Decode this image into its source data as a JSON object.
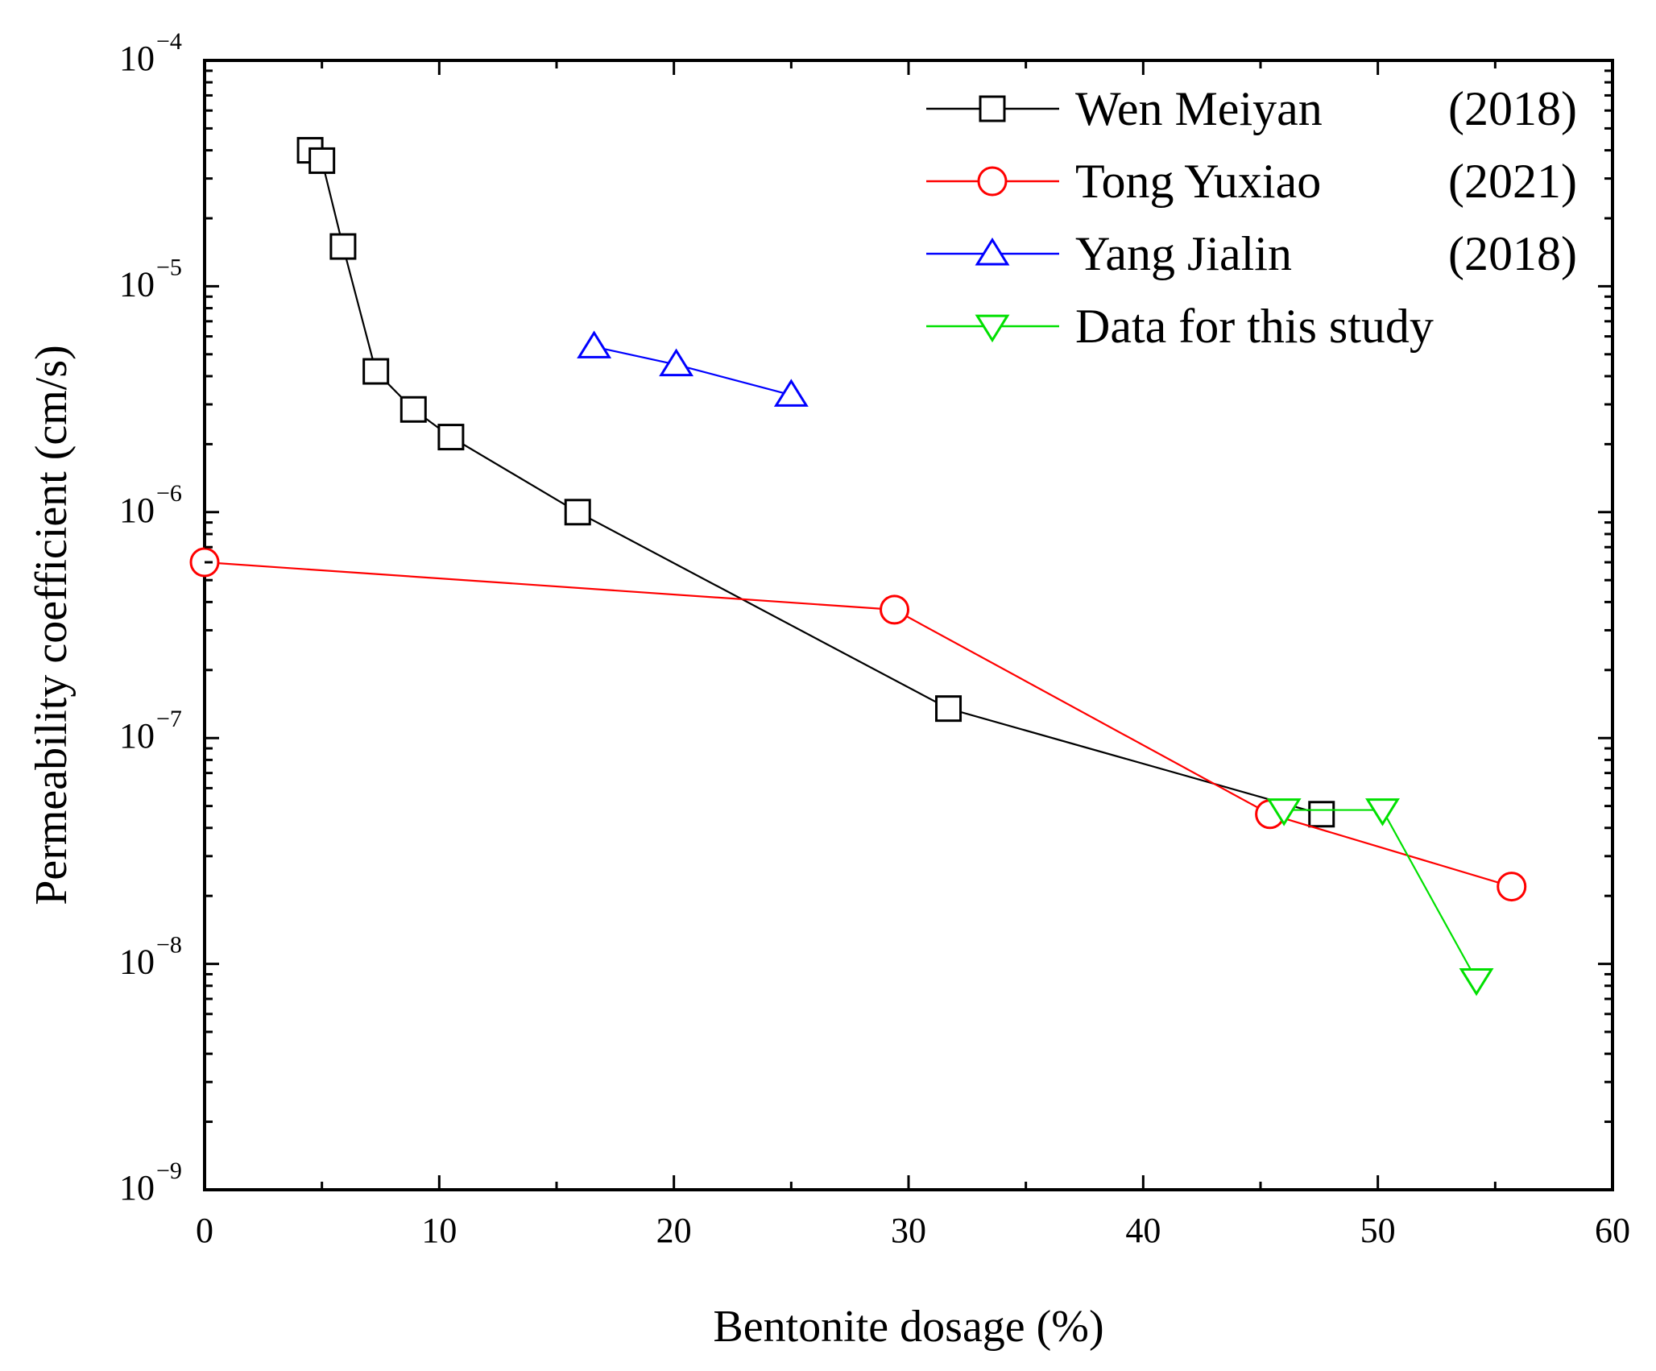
{
  "chart_data": {
    "type": "line",
    "xlabel": "Bentonite dosage (%)",
    "ylabel": "Permeability coefficient  (cm/s)",
    "xlim": [
      0,
      60
    ],
    "ylim_exponents": [
      -9,
      -4
    ],
    "yscale": "log",
    "x_ticks": [
      "0",
      "10",
      "20",
      "30",
      "40",
      "50",
      "60"
    ],
    "y_ticks": [
      {
        "base": "10",
        "exp": "−9"
      },
      {
        "base": "10",
        "exp": "−8"
      },
      {
        "base": "10",
        "exp": "−7"
      },
      {
        "base": "10",
        "exp": "−6"
      },
      {
        "base": "10",
        "exp": "−5"
      },
      {
        "base": "10",
        "exp": "−4"
      }
    ],
    "legend_position": "top-right",
    "series": [
      {
        "name": "Wen Meiyan",
        "year": "(2018)",
        "color": "#000000",
        "marker": "square",
        "points": [
          [
            4.5,
            4e-05
          ],
          [
            5.0,
            3.6e-05
          ],
          [
            5.9,
            1.5e-05
          ],
          [
            7.3,
            4.2e-06
          ],
          [
            8.9,
            2.85e-06
          ],
          [
            10.5,
            2.15e-06
          ],
          [
            15.9,
            1e-06
          ],
          [
            31.7,
            1.35e-07
          ],
          [
            47.6,
            4.6e-08
          ]
        ]
      },
      {
        "name": "Tong Yuxiao",
        "year": "(2021)",
        "color": "#ff0000",
        "marker": "circle",
        "points": [
          [
            0,
            6e-07
          ],
          [
            29.4,
            3.7e-07
          ],
          [
            45.4,
            4.6e-08
          ],
          [
            55.7,
            2.2e-08
          ]
        ]
      },
      {
        "name": "Yang Jialin",
        "year": "(2018)",
        "color": "#0000ff",
        "marker": "triangle-up",
        "points": [
          [
            16.6,
            5.4e-06
          ],
          [
            20.1,
            4.5e-06
          ],
          [
            25.0,
            3.3e-06
          ]
        ]
      },
      {
        "name": "Data for this study",
        "year": "",
        "color": "#00e000",
        "marker": "triangle-down",
        "points": [
          [
            46.0,
            4.8e-08
          ],
          [
            50.2,
            4.8e-08
          ],
          [
            54.2,
            8.5e-09
          ]
        ]
      }
    ]
  }
}
